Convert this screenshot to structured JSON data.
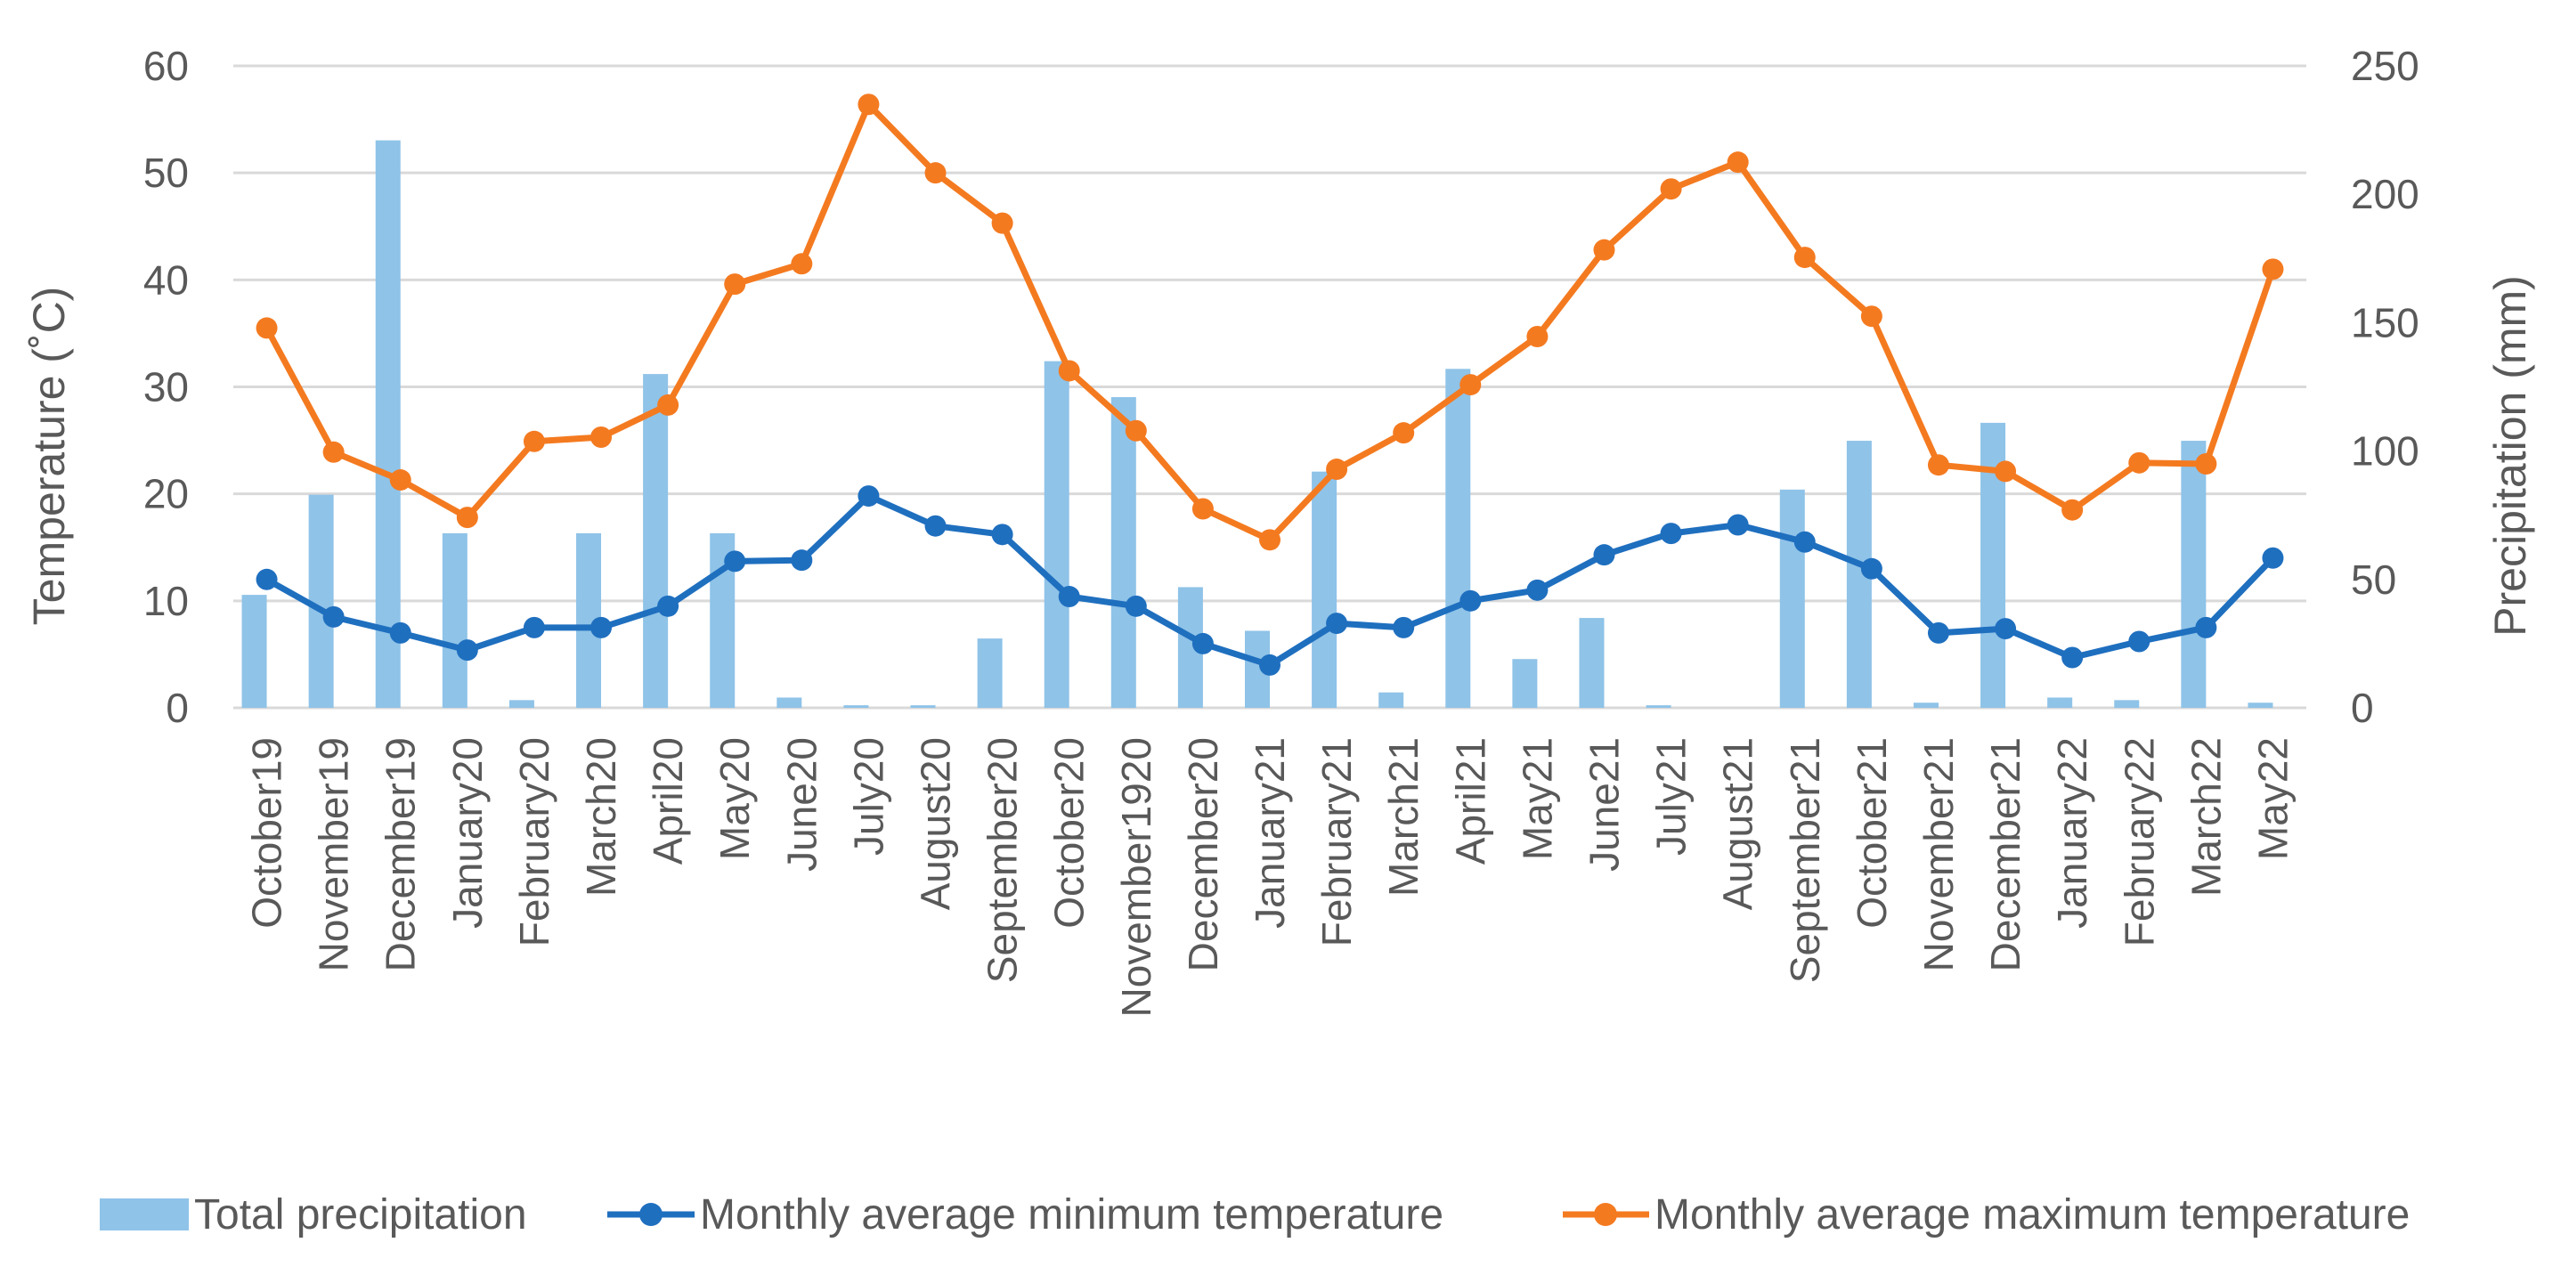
{
  "chart_data": {
    "type": "bar+line",
    "title": "",
    "xlabel": "",
    "ylabel_left": "Temperature (˚C)",
    "ylabel_right": "Precipitation (mm)",
    "ylim_left": [
      0,
      60
    ],
    "ylim_right": [
      0,
      250
    ],
    "yticks_left": [
      "0",
      "10",
      "20",
      "30",
      "40",
      "50",
      "60"
    ],
    "yticks_right": [
      "0",
      "50",
      "100",
      "150",
      "200",
      "250"
    ],
    "grid": true,
    "legend_position": "bottom",
    "categories": [
      "October19",
      "November19",
      "December19",
      "January20",
      "February20",
      "March20",
      "April20",
      "May20",
      "June20",
      "July20",
      "August20",
      "September20",
      "October20",
      "November1920",
      "December20",
      "January21",
      "February21",
      "March21",
      "April21",
      "May21",
      "June21",
      "July21",
      "August21",
      "September21",
      "October21",
      "November21",
      "December21",
      "January22",
      "February22",
      "March22",
      "May22"
    ],
    "series": [
      {
        "name": "Total precipitation",
        "kind": "bar",
        "axis": "right",
        "color": "#8fc3e8",
        "values": [
          44,
          83,
          221,
          68,
          3,
          68,
          130,
          68,
          4,
          1,
          1,
          27,
          135,
          121,
          47,
          30,
          92,
          6,
          132,
          19,
          35,
          1,
          0,
          85,
          104,
          2,
          111,
          4,
          3,
          104,
          2
        ]
      },
      {
        "name": "Monthly average minimum temperature",
        "kind": "line",
        "axis": "left",
        "color": "#1f6fbf",
        "values": [
          12.0,
          8.5,
          7.0,
          5.4,
          7.5,
          7.5,
          9.5,
          13.7,
          13.8,
          19.8,
          17.0,
          16.2,
          10.4,
          9.5,
          6.0,
          4.0,
          7.9,
          7.5,
          10.0,
          11.0,
          14.3,
          16.3,
          17.1,
          15.5,
          13.0,
          7.0,
          7.4,
          4.7,
          6.2,
          7.5,
          14.0
        ]
      },
      {
        "name": "Monthly average maximum temperature",
        "kind": "line",
        "axis": "left",
        "color": "#f47a20",
        "values": [
          35.5,
          23.9,
          21.3,
          17.8,
          24.9,
          25.3,
          28.3,
          39.6,
          41.5,
          56.4,
          50.0,
          45.3,
          31.5,
          25.9,
          18.6,
          15.7,
          22.3,
          25.7,
          30.2,
          34.7,
          42.8,
          48.5,
          51.0,
          42.1,
          36.6,
          22.7,
          22.1,
          18.5,
          22.9,
          22.8,
          41.0
        ]
      }
    ]
  }
}
